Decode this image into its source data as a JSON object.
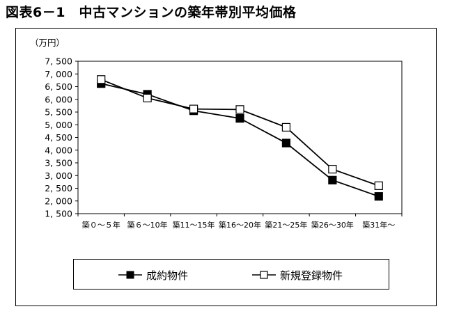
{
  "figure": {
    "title": "図表6－1　中古マンションの築年帯別平均価格"
  },
  "chart_data": {
    "type": "line",
    "title": "図表6－1　中古マンションの築年帯別平均価格",
    "unit_label": "（万円）",
    "xlabel": "",
    "ylabel": "",
    "categories": [
      "築０～５年",
      "築６～10年",
      "築11～15年",
      "築16～20年",
      "築21～25年",
      "築26～30年",
      "築31年～"
    ],
    "ylim": [
      1500,
      7500
    ],
    "yticks": [
      1500,
      2000,
      2500,
      3000,
      3500,
      4000,
      4500,
      5000,
      5500,
      6000,
      6500,
      7000,
      7500
    ],
    "ytick_labels": [
      "1, 500",
      "2, 000",
      "2, 500",
      "3, 000",
      "3, 500",
      "4, 000",
      "4, 500",
      "5, 000",
      "5, 500",
      "6, 000",
      "6, 500",
      "7, 000",
      "7, 500"
    ],
    "grid": false,
    "legend_position": "bottom",
    "series": [
      {
        "name": "成約物件",
        "marker": "filled-square",
        "color": "#000000",
        "values": [
          6620,
          6200,
          5550,
          5250,
          4280,
          2820,
          2180
        ]
      },
      {
        "name": "新規登録物件",
        "marker": "open-square",
        "color": "#000000",
        "values": [
          6780,
          6050,
          5620,
          5600,
          4900,
          3250,
          2600
        ]
      }
    ]
  }
}
